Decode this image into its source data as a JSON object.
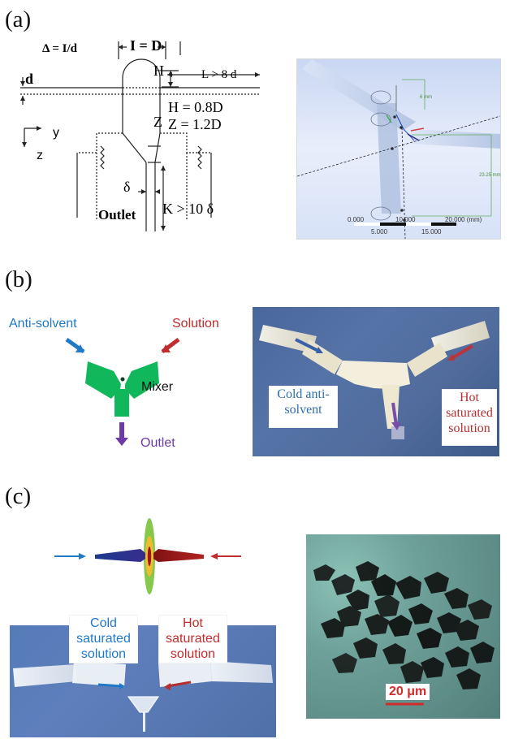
{
  "labels": {
    "panel_a": "(a)",
    "panel_b": "(b)",
    "panel_c": "(c)"
  },
  "panel_a": {
    "schematic": {
      "delta_eq": "Δ = I/d",
      "i_eq": "I = D",
      "d_label": "d",
      "h_label": "H",
      "l_eq": "L > 8 d",
      "z_label": "Z",
      "h_ratio": "H = 0.8D",
      "z_ratio": "Z = 1.2D",
      "y_axis": "y",
      "z_axis": "z",
      "delta_symbol": "δ",
      "outlet": "Outlet",
      "k_eq": "K > 10 δ"
    },
    "render": {
      "dim_top": "6 mm",
      "dim_side": "23.25 mm",
      "scale_top_left": "0.000",
      "scale_top_mid": "10.000",
      "scale_top_right": "20.000 (mm)",
      "scale_bottom_left": "5.000",
      "scale_bottom_right": "15.000"
    }
  },
  "panel_b": {
    "antisolvent": "Anti-solvent",
    "solution": "Solution",
    "mixer": "Mixer",
    "outlet": "Outlet",
    "cold_callout_line1": "Cold anti-",
    "cold_callout_line2": "solvent",
    "hot_callout_line1": "Hot",
    "hot_callout_line2": "saturated",
    "hot_callout_line3": "solution"
  },
  "panel_c": {
    "cold_line1": "Cold",
    "cold_line2": "saturated",
    "cold_line3": "solution",
    "hot_line1": "Hot",
    "hot_line2": "saturated",
    "hot_line3": "solution",
    "scale_bar": "20 μm"
  },
  "colors": {
    "blue": "#1f78c8",
    "red": "#c12c2c",
    "green": "#11b75b",
    "purple": "#6d3aa8"
  }
}
